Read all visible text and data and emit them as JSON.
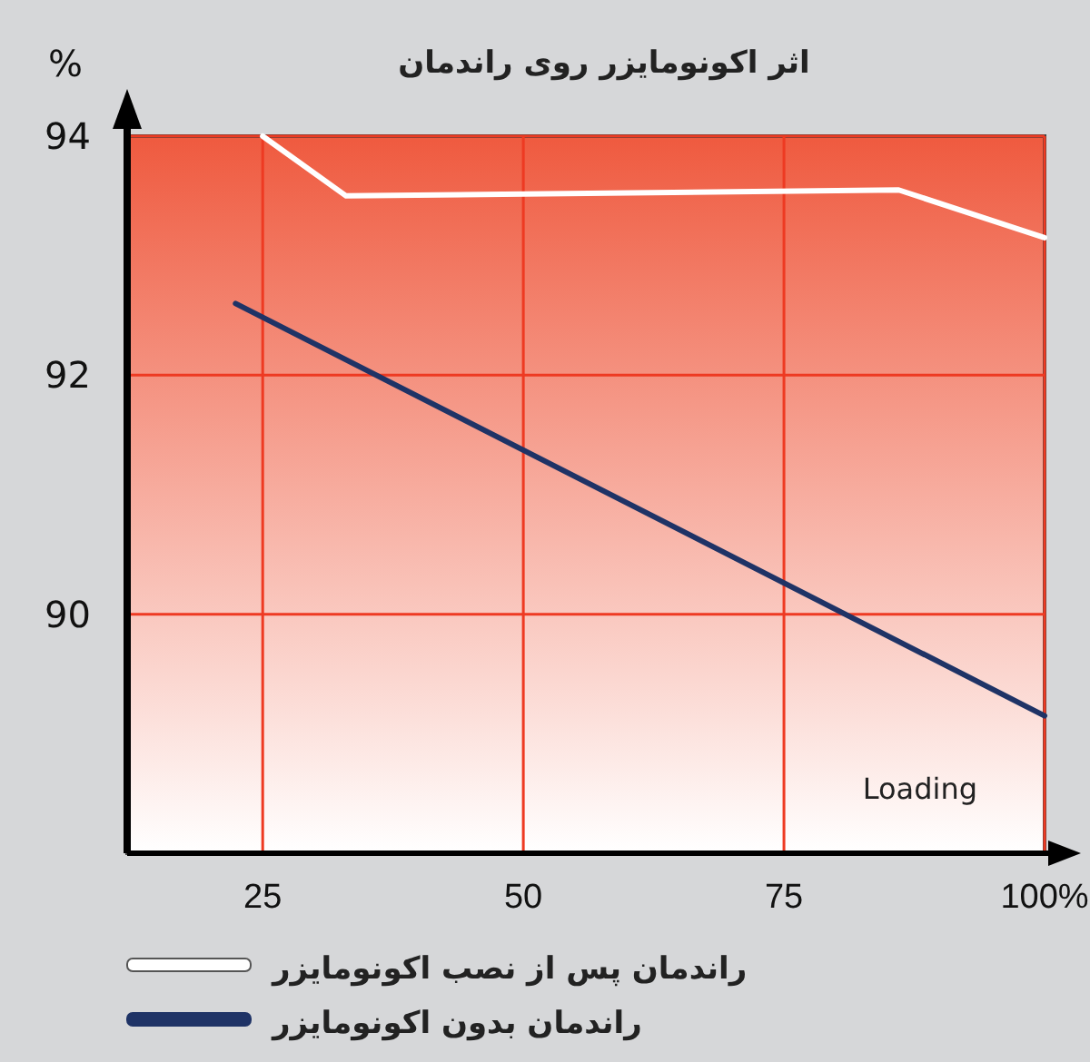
{
  "chart_data": {
    "type": "line",
    "title": "اثر اکونومایزر روی راندمان",
    "ylabel": "%",
    "series": [
      {
        "name": "راندمان پس از نصب اکونومایزر",
        "color": "#ffffff",
        "x": [
          25,
          33,
          86,
          100
        ],
        "values": [
          94,
          93.5,
          93.55,
          93.15
        ]
      },
      {
        "name": "راندمان بدون اکونومایزر",
        "color": "#1f3366",
        "x": [
          22.4,
          100
        ],
        "values": [
          92.6,
          89.15
        ]
      }
    ],
    "xlim": [
      12,
      100
    ],
    "ylim": [
      88,
      94
    ],
    "xticks": [
      25,
      50,
      75,
      {
        "value": 100,
        "label": "100%"
      }
    ],
    "yticks": [
      90,
      92,
      94
    ],
    "annotations": [
      "Loading"
    ],
    "grid": true,
    "legend": "bottom",
    "marker": "none",
    "line_style": "solid"
  }
}
